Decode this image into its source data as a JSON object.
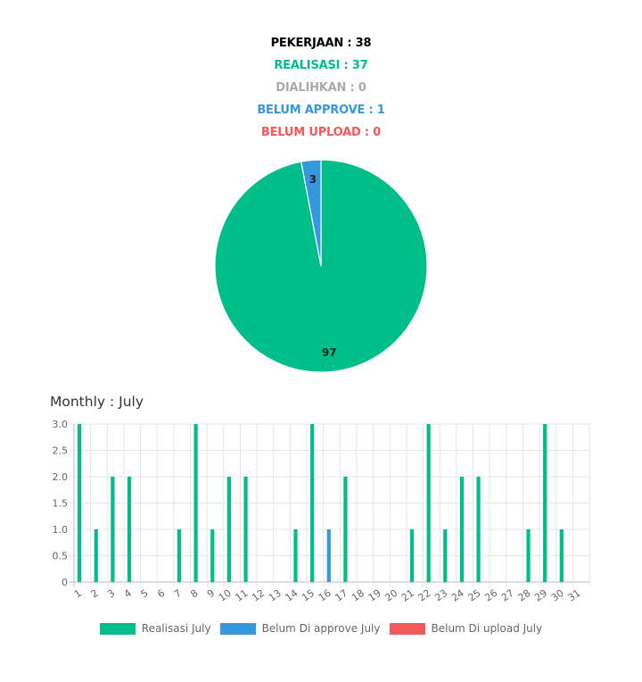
{
  "summary": {
    "pekerjaan": "PEKERJAAN : 38",
    "realisasi": "REALISASI : 37",
    "dialihkan": "DIALIHKAN : 0",
    "belum_approve": "BELUM APPROVE : 1",
    "belum_upload": "BELUM UPLOAD : 0"
  },
  "colors": {
    "pekerjaan": "#000000",
    "realisasi": "#00be8a",
    "dialihkan": "#aaaaaa",
    "approve": "#3598dc",
    "upload": "#f35958"
  },
  "monthly": {
    "title": "Monthly : July"
  },
  "chart_data": [
    {
      "type": "pie",
      "slices": [
        {
          "label": "Realisasi",
          "value": 97,
          "color": "#00be8a"
        },
        {
          "label": "Belum Approve",
          "value": 3,
          "color": "#3598dc"
        }
      ],
      "data_labels": [
        "97",
        "3"
      ]
    },
    {
      "type": "bar",
      "title": "Monthly : July",
      "categories": [
        "1",
        "2",
        "3",
        "4",
        "5",
        "6",
        "7",
        "8",
        "9",
        "10",
        "11",
        "12",
        "13",
        "14",
        "15",
        "16",
        "17",
        "18",
        "19",
        "20",
        "21",
        "22",
        "23",
        "24",
        "25",
        "26",
        "27",
        "28",
        "29",
        "30",
        "31"
      ],
      "series": [
        {
          "name": "Realisasi July",
          "color": "#00be8a",
          "values": [
            3,
            1,
            2,
            2,
            0,
            0,
            1,
            3,
            1,
            2,
            2,
            0,
            0,
            1,
            3,
            0,
            2,
            0,
            0,
            0,
            1,
            3,
            1,
            2,
            2,
            0,
            0,
            1,
            3,
            1,
            0
          ]
        },
        {
          "name": "Belum Di approve July",
          "color": "#3598dc",
          "values": [
            0,
            0,
            0,
            0,
            0,
            0,
            0,
            0,
            0,
            0,
            0,
            0,
            0,
            0,
            0,
            1,
            0,
            0,
            0,
            0,
            0,
            0,
            0,
            0,
            0,
            0,
            0,
            0,
            0,
            0,
            0
          ]
        },
        {
          "name": "Belum Di upload July",
          "color": "#f35958",
          "values": [
            0,
            0,
            0,
            0,
            0,
            0,
            0,
            0,
            0,
            0,
            0,
            0,
            0,
            0,
            0,
            0,
            0,
            0,
            0,
            0,
            0,
            0,
            0,
            0,
            0,
            0,
            0,
            0,
            0,
            0,
            0
          ]
        }
      ],
      "ylim": [
        0,
        3
      ],
      "yticks": [
        "0",
        "0.5",
        "1.0",
        "1.5",
        "2.0",
        "2.5",
        "3.0"
      ],
      "grid": true,
      "legend": "bottom"
    }
  ]
}
